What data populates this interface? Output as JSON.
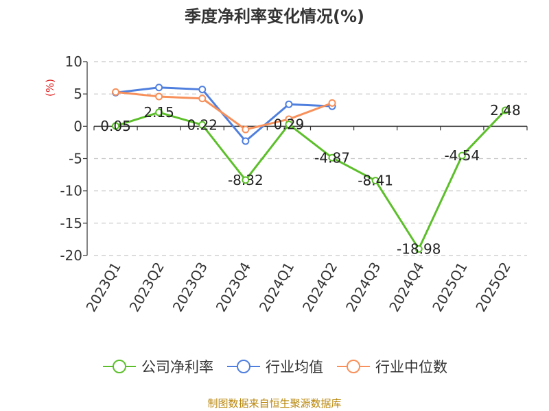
{
  "title": "季度净利率变化情况(%)",
  "source": "制图数据来自恒生聚源数据库",
  "chart_data": {
    "type": "line",
    "title": "季度净利率变化情况(%)",
    "ylabel": "(%)",
    "categories": [
      "2023Q1",
      "2023Q2",
      "2023Q3",
      "2023Q4",
      "2024Q1",
      "2024Q2",
      "2024Q3",
      "2024Q4",
      "2025Q1",
      "2025Q2"
    ],
    "ylim": [
      -20,
      10
    ],
    "yticks": [
      10,
      5,
      0,
      -5,
      -10,
      -15,
      -20
    ],
    "grid": "horizontal-dashed",
    "legend": "bottom",
    "series": [
      {
        "name": "公司净利率",
        "color": "#5cbf2a",
        "values": [
          0.05,
          2.15,
          0.22,
          -8.32,
          0.29,
          -4.87,
          -8.41,
          -18.98,
          -4.54,
          2.48
        ],
        "labels": [
          "0.05",
          "2.15",
          "0.22",
          "-8.32",
          "0.29",
          "-4.87",
          "-8.41",
          "-18.98",
          "-4.54",
          "2.48"
        ]
      },
      {
        "name": "行业均值",
        "color": "#4f7fde",
        "values": [
          5.2,
          6.0,
          5.7,
          -2.3,
          3.4,
          3.1,
          null,
          null,
          null,
          null
        ]
      },
      {
        "name": "行业中位数",
        "color": "#f7905a",
        "values": [
          5.3,
          4.6,
          4.3,
          -0.5,
          1.1,
          3.6,
          null,
          null,
          null,
          null
        ]
      }
    ]
  }
}
